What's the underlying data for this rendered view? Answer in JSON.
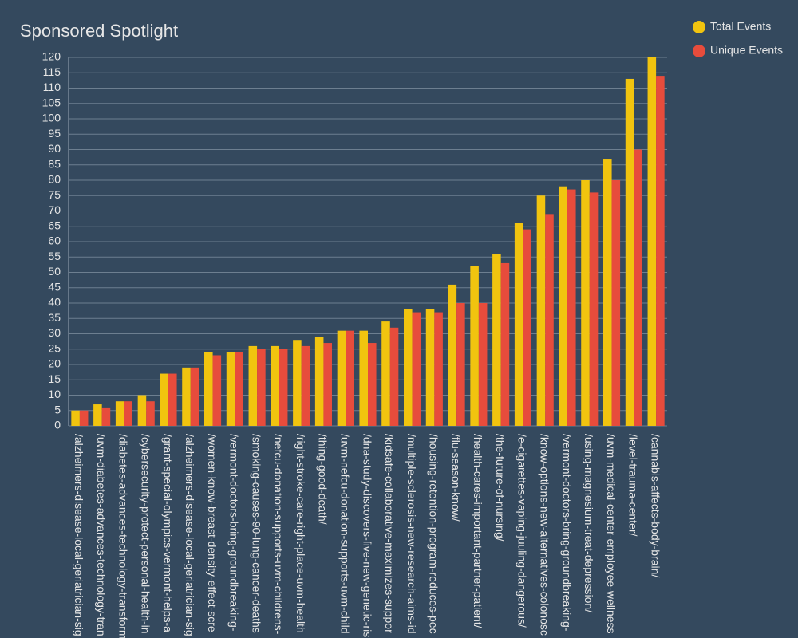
{
  "chart_data": {
    "type": "bar",
    "title": "Sponsored Spotlight",
    "categories": [
      "/alzheimers-disease-local-geriatrician-sig",
      "/uvm-diabetes-advances-technology-tran",
      "/diabetes-advances-technology-transform",
      "/cybersecurity-protect-personal-health-in",
      "/grant-special-olympics-vermont-helps-a",
      "/alzheimers-disease-local-geriatrician-sig",
      "/women-know-breast-density-effect-scre",
      "/vermont-doctors-bring-groundbreaking-",
      "/smoking-causes-90-lung-cancer-deaths",
      "/nefcu-donation-supports-uvm-childrens-",
      "/right-stroke-care-right-place-uvm-health",
      "/thing-good-death/",
      "/uvm-nefcu-donation-supports-uvm-child",
      "/dna-study-discovers-five-new-genetic-ris",
      "/kidsafe-collaborative-maximizes-suppor",
      "/multiple-sclerosis-new-research-aims-id",
      "/housing-retention-program-reduces-pec",
      "/flu-season-know/",
      "/health-cares-important-partner-patient/",
      "/the-future-of-nursing/",
      "/e-cigarettes-vaping-juuling-dangerous/",
      "/know-options-new-alternatives-colonosc",
      "/vermont-doctors-bring-groundbreaking-",
      "/using-magnesium-treat-depression/",
      "/uvm-medical-center-employee-wellness",
      "/level-trauma-center/",
      "/cannabis-affects-body-brain/"
    ],
    "series": [
      {
        "name": "Total Events",
        "color": "#f1c40f",
        "values": [
          5,
          7,
          8,
          10,
          17,
          19,
          24,
          24,
          26,
          26,
          28,
          29,
          31,
          31,
          34,
          38,
          38,
          46,
          52,
          56,
          66,
          75,
          78,
          80,
          87,
          113,
          120
        ]
      },
      {
        "name": "Unique Events",
        "color": "#e74c3c",
        "values": [
          5,
          6,
          8,
          8,
          17,
          19,
          23,
          24,
          25,
          25,
          26,
          27,
          31,
          27,
          32,
          37,
          37,
          40,
          40,
          53,
          64,
          69,
          77,
          76,
          80,
          90,
          114
        ]
      }
    ],
    "ylim": [
      0,
      120
    ],
    "yticks": [
      0,
      5,
      10,
      15,
      20,
      25,
      30,
      35,
      40,
      45,
      50,
      55,
      60,
      65,
      70,
      75,
      80,
      85,
      90,
      95,
      100,
      105,
      110,
      115,
      120
    ],
    "grid": true,
    "legend": "top-right"
  }
}
